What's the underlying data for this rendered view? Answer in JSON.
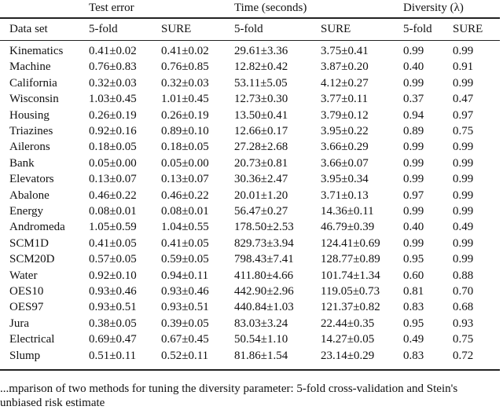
{
  "table": {
    "group_headers": [
      "Test error",
      "Time (seconds)",
      "Diversity (λ)"
    ],
    "columns": [
      "Data set",
      "5-fold",
      "SURE",
      "5-fold",
      "SURE",
      "5-fold",
      "SURE"
    ],
    "rows": [
      [
        "Kinematics",
        "0.41±0.02",
        "0.41±0.02",
        "29.61±3.36",
        "3.75±0.41",
        "0.99",
        "0.99"
      ],
      [
        "Machine",
        "0.76±0.83",
        "0.76±0.85",
        "12.82±0.42",
        "3.87±0.20",
        "0.40",
        "0.91"
      ],
      [
        "California",
        "0.32±0.03",
        "0.32±0.03",
        "53.11±5.05",
        "4.12±0.27",
        "0.99",
        "0.99"
      ],
      [
        "Wisconsin",
        "1.03±0.45",
        "1.01±0.45",
        "12.73±0.30",
        "3.77±0.11",
        "0.37",
        "0.47"
      ],
      [
        "Housing",
        "0.26±0.19",
        "0.26±0.19",
        "13.50±0.41",
        "3.79±0.12",
        "0.94",
        "0.97"
      ],
      [
        "Triazines",
        "0.92±0.16",
        "0.89±0.10",
        "12.66±0.17",
        "3.95±0.22",
        "0.89",
        "0.75"
      ],
      [
        "Ailerons",
        "0.18±0.05",
        "0.18±0.05",
        "27.28±2.68",
        "3.66±0.29",
        "0.99",
        "0.99"
      ],
      [
        "Bank",
        "0.05±0.00",
        "0.05±0.00",
        "20.73±0.81",
        "3.66±0.07",
        "0.99",
        "0.99"
      ],
      [
        "Elevators",
        "0.13±0.07",
        "0.13±0.07",
        "30.36±2.47",
        "3.95±0.34",
        "0.99",
        "0.99"
      ],
      [
        "Abalone",
        "0.46±0.22",
        "0.46±0.22",
        "20.01±1.20",
        "3.71±0.13",
        "0.97",
        "0.99"
      ],
      [
        "Energy",
        "0.08±0.01",
        "0.08±0.01",
        "56.47±0.27",
        "14.36±0.11",
        "0.99",
        "0.99"
      ],
      [
        "Andromeda",
        "1.05±0.59",
        "1.04±0.55",
        "178.50±2.53",
        "46.79±0.39",
        "0.40",
        "0.49"
      ],
      [
        "SCM1D",
        "0.41±0.05",
        "0.41±0.05",
        "829.73±3.94",
        "124.41±0.69",
        "0.99",
        "0.99"
      ],
      [
        "SCM20D",
        "0.57±0.05",
        "0.59±0.05",
        "798.43±7.41",
        "128.77±0.89",
        "0.95",
        "0.99"
      ],
      [
        "Water",
        "0.92±0.10",
        "0.94±0.11",
        "411.80±4.66",
        "101.74±1.34",
        "0.60",
        "0.88"
      ],
      [
        "OES10",
        "0.93±0.46",
        "0.93±0.46",
        "442.90±2.96",
        "119.05±0.73",
        "0.81",
        "0.70"
      ],
      [
        "OES97",
        "0.93±0.51",
        "0.93±0.51",
        "440.84±1.03",
        "121.37±0.82",
        "0.83",
        "0.68"
      ],
      [
        "Jura",
        "0.38±0.05",
        "0.39±0.05",
        "83.03±3.24",
        "22.44±0.35",
        "0.95",
        "0.93"
      ],
      [
        "Electrical",
        "0.69±0.47",
        "0.67±0.45",
        "50.54±1.10",
        "14.27±0.05",
        "0.49",
        "0.75"
      ],
      [
        "Slump",
        "0.51±0.11",
        "0.52±0.11",
        "81.86±1.54",
        "23.14±0.29",
        "0.83",
        "0.72"
      ]
    ]
  },
  "caption": "...mparison of two methods for tuning the diversity parameter: 5-fold cross-validation and Stein's unbiased risk estimate"
}
